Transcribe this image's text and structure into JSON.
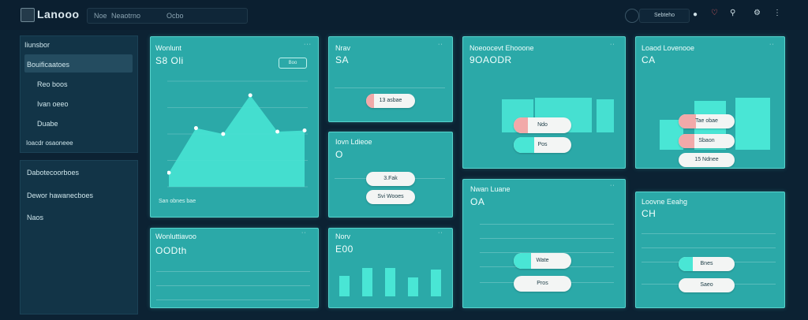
{
  "app": {
    "title": "Lanooo"
  },
  "search": {
    "text": "Noe",
    "text2": "Neaotrno",
    "text3": "Ocbo"
  },
  "topbar": {
    "user_label": "Sebteho"
  },
  "sidebar": {
    "section1_title": "Iiunsbor",
    "items": [
      {
        "label": "Bouificaatoes"
      },
      {
        "label": "Reo boos"
      },
      {
        "label": "Ivan oeeo"
      },
      {
        "label": "Duabe"
      }
    ],
    "footer": "Ioacdr osaoneee",
    "items2": [
      {
        "label": "Dabotecoorboes"
      },
      {
        "label": "Dewor hawanecboes"
      },
      {
        "label": "Naos"
      }
    ]
  },
  "cards": {
    "c1": {
      "title": "Wonlunt",
      "value": "S8 Oli",
      "button": "Boo",
      "footer": "San obnes bae"
    },
    "c2": {
      "title": "Nrav",
      "value": "SA",
      "pill": "13 asbae"
    },
    "c3": {
      "title": "Noeoocevt Ehooone",
      "value": "9OAODR",
      "pill1": "Ndo",
      "pill2": "Pos"
    },
    "c4": {
      "title": "Loaod Lovenooe",
      "value": "CA",
      "pill1": "Tae obae",
      "pill2": "Sbaon",
      "pill3": "15 Ndnee"
    },
    "c5": {
      "title": "Iovn Ldieoe",
      "value": "O",
      "pill1": "3.Fak",
      "pill2": "Svi Wooes"
    },
    "c6": {
      "title": "Wonluttiavoo",
      "value": "OODth"
    },
    "c7": {
      "title": "Norv",
      "value": "E00"
    },
    "c8": {
      "title": "Nwan Luane",
      "value": "OA",
      "pill1": "Wate",
      "pill2": "Pros"
    },
    "c9": {
      "title": "Loovne Eeahg",
      "value": "CH",
      "pill1": "Bnes",
      "pill2": "Saeo"
    }
  },
  "chart_data": {
    "type": "area",
    "x": [
      0,
      1,
      2,
      3,
      4,
      5
    ],
    "values": [
      12,
      50,
      45,
      78,
      47,
      48
    ]
  },
  "colors": {
    "accent": "#2ba9a8",
    "pill_highlight": "#49e6d5",
    "pill_red": "#f2a9a9"
  }
}
